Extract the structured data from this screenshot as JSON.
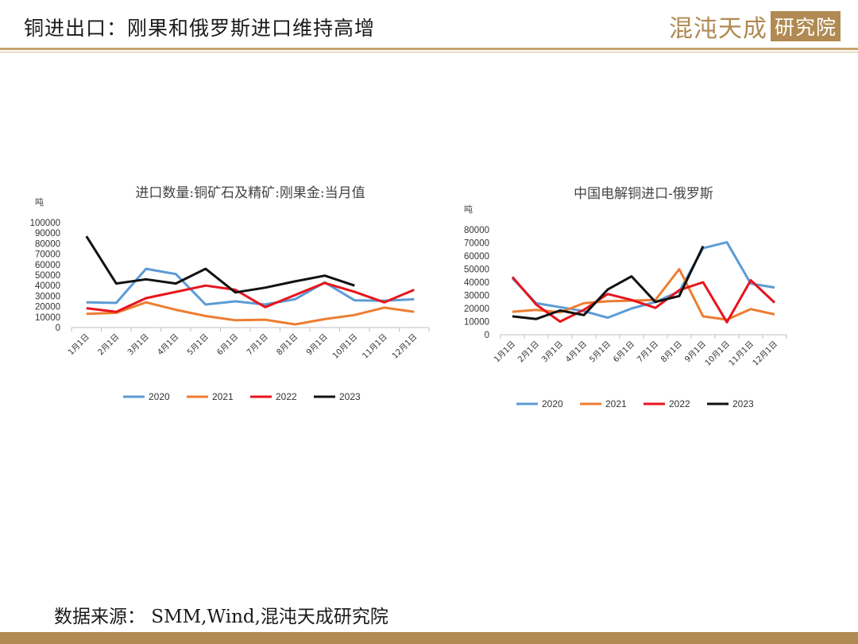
{
  "header": {
    "title": "铜进出口：刚果和俄罗斯进口维持高增",
    "logo_text": "混沌天成",
    "logo_box_text": "研究院",
    "accent_color": "#b08a52"
  },
  "footer": {
    "source": "数据来源：  SMM,Wind,混沌天成研究院"
  },
  "chart_data": [
    {
      "type": "line",
      "title": "进口数量:铜矿石及精矿:刚果金:当月值",
      "ylabel": "吨",
      "xlabel": "",
      "ylim": [
        0,
        100000
      ],
      "yticks": [
        "0",
        "10000",
        "20000",
        "30000",
        "40000",
        "50000",
        "60000",
        "70000",
        "80000",
        "90000",
        "100000"
      ],
      "categories": [
        "1月1日",
        "2月1日",
        "3月1日",
        "4月1日",
        "5月1日",
        "6月1日",
        "7月1日",
        "8月1日",
        "9月1日",
        "10月1日",
        "11月1日",
        "12月1日"
      ],
      "grid": false,
      "legend_position": "bottom",
      "series": [
        {
          "name": "2020",
          "color": "#5b9bd5",
          "values": [
            24000,
            23500,
            56000,
            51000,
            22000,
            25000,
            22000,
            27000,
            43000,
            26000,
            25500,
            27000
          ]
        },
        {
          "name": "2021",
          "color": "#ed7d31",
          "values": [
            13000,
            14000,
            24000,
            17000,
            11000,
            7000,
            7500,
            3000,
            8000,
            12000,
            19000,
            15000
          ]
        },
        {
          "name": "2022",
          "color": "#e8141c",
          "values": [
            18500,
            15000,
            28000,
            34000,
            40000,
            36000,
            19500,
            31000,
            42500,
            34000,
            24000,
            36000
          ]
        },
        {
          "name": "2023",
          "color": "#111111",
          "values": [
            87000,
            42000,
            46000,
            42000,
            56000,
            33500,
            38000,
            44000,
            49500,
            40000,
            null,
            null
          ]
        }
      ]
    },
    {
      "type": "line",
      "title": "中国电解铜进口-俄罗斯",
      "ylabel": "吨",
      "xlabel": "",
      "ylim": [
        0,
        80000
      ],
      "yticks": [
        "0",
        "10000",
        "20000",
        "30000",
        "40000",
        "50000",
        "60000",
        "70000",
        "80000"
      ],
      "categories": [
        "1月1日",
        "2月1日",
        "3月1日",
        "4月1日",
        "5月1日",
        "6月1日",
        "7月1日",
        "8月1日",
        "9月1日",
        "10月1日",
        "11月1日",
        "12月1日"
      ],
      "grid": false,
      "legend_position": "bottom",
      "series": [
        {
          "name": "2020",
          "color": "#5b9bd5",
          "values": [
            43000,
            24000,
            21000,
            18000,
            13000,
            20000,
            25000,
            33000,
            66000,
            70500,
            39000,
            36000
          ]
        },
        {
          "name": "2021",
          "color": "#ed7d31",
          "values": [
            17500,
            19000,
            17000,
            24000,
            25500,
            26000,
            26500,
            50000,
            14000,
            11500,
            19500,
            15500
          ]
        },
        {
          "name": "2022",
          "color": "#e8141c",
          "values": [
            44000,
            23000,
            10000,
            19000,
            31000,
            26500,
            20500,
            34000,
            40000,
            9500,
            41500,
            24500
          ]
        },
        {
          "name": "2023",
          "color": "#111111",
          "values": [
            14000,
            12000,
            18500,
            15000,
            34500,
            44500,
            25000,
            29500,
            67500,
            null,
            null,
            null
          ]
        }
      ]
    }
  ]
}
